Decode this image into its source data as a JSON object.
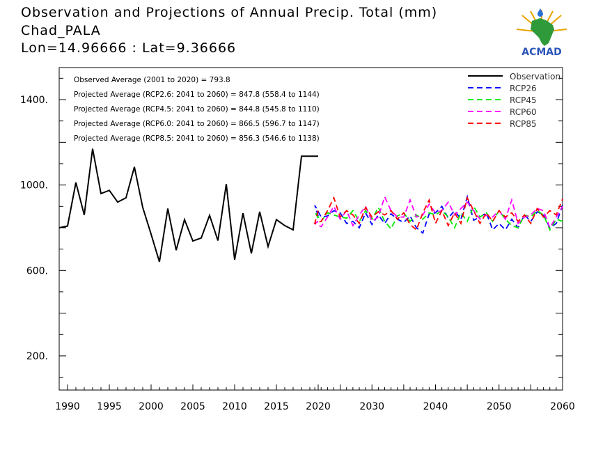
{
  "header": {
    "title": "Observation and Projections of Annual Precip. Total (mm)",
    "location": "Chad_PALA",
    "coords": "Lon=14.96666 : Lat=9.36666"
  },
  "logo": {
    "text": "ACMAD",
    "icon": "africa-map-icon"
  },
  "colors": {
    "observation": "#000000",
    "rcp26": "#0000ff",
    "rcp45": "#00ee00",
    "rcp60": "#ff00ff",
    "rcp85": "#ff0000"
  },
  "chart_data": {
    "type": "line",
    "xlim": [
      1989,
      2060
    ],
    "ylim": [
      40,
      1550
    ],
    "y_ticks": [
      {
        "value": 200,
        "label": "200."
      },
      {
        "value": 600,
        "label": "600."
      },
      {
        "value": 1000,
        "label": "1000."
      },
      {
        "value": 1400,
        "label": "1400."
      }
    ],
    "x_ticks": [
      {
        "value": 1990,
        "label": "1990"
      },
      {
        "value": 1995,
        "label": "1995"
      },
      {
        "value": 2000,
        "label": "2000"
      },
      {
        "value": 2005,
        "label": "2005"
      },
      {
        "value": 2010,
        "label": "2010"
      },
      {
        "value": 2015,
        "label": "2015"
      },
      {
        "value": 2020,
        "label": "2020"
      },
      {
        "value": 2030,
        "label": "2030"
      },
      {
        "value": 2040,
        "label": "2040"
      },
      {
        "value": 2050,
        "label": "2050"
      },
      {
        "value": 2060,
        "label": "2060"
      }
    ],
    "annotations": [
      "Observed Average (2001 to 2020) = 793.8",
      "Projected Average (RCP2.6: 2041 to 2060) = 847.8 (558.4 to 1144)",
      "Projected Average (RCP4.5: 2041 to 2060) = 844.8 (545.8 to 1110)",
      "Projected Average (RCP6.0: 2041 to 2060) = 866.5 (596.7 to 1147)",
      "Projected Average (RCP8.5: 2041 to 2060) = 856.3 (546.6 to 1138)"
    ],
    "legend_position": "top-right",
    "series": [
      {
        "name": "Observation",
        "key": "observation",
        "style": "solid",
        "x": [
          1989,
          1990,
          1991,
          1992,
          1993,
          1994,
          1995,
          1996,
          1997,
          1998,
          1999,
          2000,
          2001,
          2002,
          2003,
          2004,
          2005,
          2006,
          2007,
          2008,
          2009,
          2010,
          2011,
          2012,
          2013,
          2014,
          2015,
          2016,
          2017,
          2018,
          2019,
          2020
        ],
        "values": [
          800,
          808,
          1012,
          860,
          1170,
          960,
          975,
          920,
          940,
          1085,
          895,
          770,
          640,
          890,
          695,
          838,
          738,
          752,
          858,
          740,
          1005,
          650,
          868,
          680,
          875,
          712,
          838,
          810,
          790,
          1135,
          1135,
          1135
        ]
      },
      {
        "name": "RCP26",
        "key": "rcp26",
        "style": "dashed",
        "x": [
          2020,
          2021,
          2022,
          2023,
          2024,
          2025,
          2026,
          2027,
          2028,
          2029,
          2030,
          2031,
          2032,
          2033,
          2034,
          2035,
          2036,
          2037,
          2038,
          2039,
          2040,
          2041,
          2042,
          2043,
          2044,
          2045,
          2046,
          2047,
          2048,
          2049,
          2050,
          2051,
          2052,
          2053,
          2054,
          2055,
          2056,
          2057,
          2058,
          2059,
          2060
        ],
        "values": [
          855,
          905,
          850,
          855,
          880,
          870,
          820,
          830,
          800,
          870,
          815,
          860,
          820,
          865,
          840,
          825,
          855,
          800,
          775,
          865,
          870,
          900,
          845,
          880,
          840,
          945,
          835,
          850,
          870,
          790,
          820,
          790,
          840,
          800,
          860,
          830,
          875,
          860,
          800,
          820,
          905
        ]
      },
      {
        "name": "RCP45",
        "key": "rcp45",
        "style": "dashed",
        "x": [
          2020,
          2021,
          2022,
          2023,
          2024,
          2025,
          2026,
          2027,
          2028,
          2029,
          2030,
          2031,
          2032,
          2033,
          2034,
          2035,
          2036,
          2037,
          2038,
          2039,
          2040,
          2041,
          2042,
          2043,
          2044,
          2045,
          2046,
          2047,
          2048,
          2049,
          2050,
          2051,
          2052,
          2053,
          2054,
          2055,
          2056,
          2057,
          2058,
          2059,
          2060
        ],
        "values": [
          845,
          875,
          830,
          870,
          860,
          850,
          845,
          880,
          830,
          880,
          840,
          895,
          830,
          795,
          855,
          870,
          830,
          860,
          840,
          870,
          860,
          880,
          850,
          800,
          870,
          830,
          900,
          850,
          870,
          830,
          880,
          840,
          810,
          800,
          860,
          850,
          880,
          860,
          790,
          840,
          830
        ]
      },
      {
        "name": "RCP60",
        "key": "rcp60",
        "style": "dashed",
        "x": [
          2020,
          2021,
          2022,
          2023,
          2024,
          2025,
          2026,
          2027,
          2028,
          2029,
          2030,
          2031,
          2032,
          2033,
          2034,
          2035,
          2036,
          2037,
          2038,
          2039,
          2040,
          2041,
          2042,
          2043,
          2044,
          2045,
          2046,
          2047,
          2048,
          2049,
          2050,
          2051,
          2052,
          2053,
          2054,
          2055,
          2056,
          2057,
          2058,
          2059,
          2060
        ],
        "values": [
          830,
          820,
          805,
          850,
          900,
          840,
          880,
          810,
          860,
          900,
          830,
          850,
          945,
          880,
          850,
          850,
          930,
          850,
          860,
          910,
          870,
          880,
          920,
          860,
          890,
          920,
          880,
          840,
          860,
          850,
          880,
          840,
          930,
          820,
          850,
          860,
          890,
          880,
          800,
          850,
          900
        ]
      },
      {
        "name": "RCP85",
        "key": "rcp85",
        "style": "dashed",
        "x": [
          2020,
          2021,
          2022,
          2023,
          2024,
          2025,
          2026,
          2027,
          2028,
          2029,
          2030,
          2031,
          2032,
          2033,
          2034,
          2035,
          2036,
          2037,
          2038,
          2039,
          2040,
          2041,
          2042,
          2043,
          2044,
          2045,
          2046,
          2047,
          2048,
          2049,
          2050,
          2051,
          2052,
          2053,
          2054,
          2055,
          2056,
          2057,
          2058,
          2059,
          2060
        ],
        "values": [
          880,
          820,
          830,
          880,
          940,
          850,
          880,
          860,
          820,
          895,
          850,
          875,
          860,
          880,
          840,
          870,
          815,
          790,
          870,
          930,
          820,
          880,
          810,
          870,
          820,
          940,
          880,
          820,
          870,
          830,
          880,
          850,
          870,
          830,
          860,
          820,
          890,
          850,
          880,
          860,
          935
        ]
      }
    ]
  }
}
